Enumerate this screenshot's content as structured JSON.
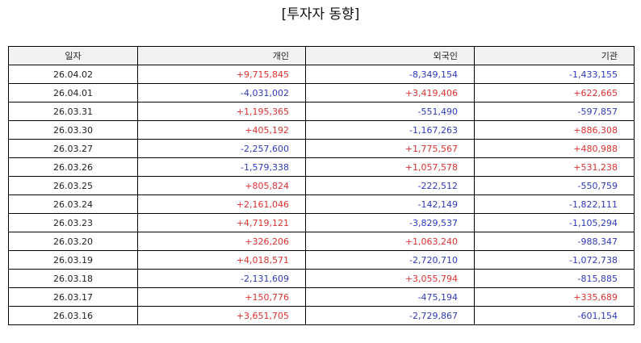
{
  "title": "[투자자 동향]",
  "colors": {
    "positive": "#e03131",
    "negative": "#2f3ac0",
    "header_bg": "#f2f2f2"
  },
  "columns": [
    "일자",
    "개인",
    "외국인",
    "기관"
  ],
  "rows": [
    {
      "date": "26.04.02",
      "individual": "+9,715,845",
      "foreign": "-8,349,154",
      "institution": "-1,433,155"
    },
    {
      "date": "26.04.01",
      "individual": "-4,031,002",
      "foreign": "+3,419,406",
      "institution": "+622,665"
    },
    {
      "date": "26.03.31",
      "individual": "+1,195,365",
      "foreign": "-551,490",
      "institution": "-597,857"
    },
    {
      "date": "26.03.30",
      "individual": "+405,192",
      "foreign": "-1,167,263",
      "institution": "+886,308"
    },
    {
      "date": "26.03.27",
      "individual": "-2,257,600",
      "foreign": "+1,775,567",
      "institution": "+480,988"
    },
    {
      "date": "26.03.26",
      "individual": "-1,579,338",
      "foreign": "+1,057,578",
      "institution": "+531,238"
    },
    {
      "date": "26.03.25",
      "individual": "+805,824",
      "foreign": "-222,512",
      "institution": "-550,759"
    },
    {
      "date": "26.03.24",
      "individual": "+2,161,046",
      "foreign": "-142,149",
      "institution": "-1,822,111"
    },
    {
      "date": "26.03.23",
      "individual": "+4,719,121",
      "foreign": "-3,829,537",
      "institution": "-1,105,294"
    },
    {
      "date": "26.03.20",
      "individual": "+326,206",
      "foreign": "+1,063,240",
      "institution": "-988,347"
    },
    {
      "date": "26.03.19",
      "individual": "+4,018,571",
      "foreign": "-2,720,710",
      "institution": "-1,072,738"
    },
    {
      "date": "26.03.18",
      "individual": "-2,131,609",
      "foreign": "+3,055,794",
      "institution": "-815,885"
    },
    {
      "date": "26.03.17",
      "individual": "+150,776",
      "foreign": "-475,194",
      "institution": "+335,689"
    },
    {
      "date": "26.03.16",
      "individual": "+3,651,705",
      "foreign": "-2,729,867",
      "institution": "-601,154"
    }
  ]
}
